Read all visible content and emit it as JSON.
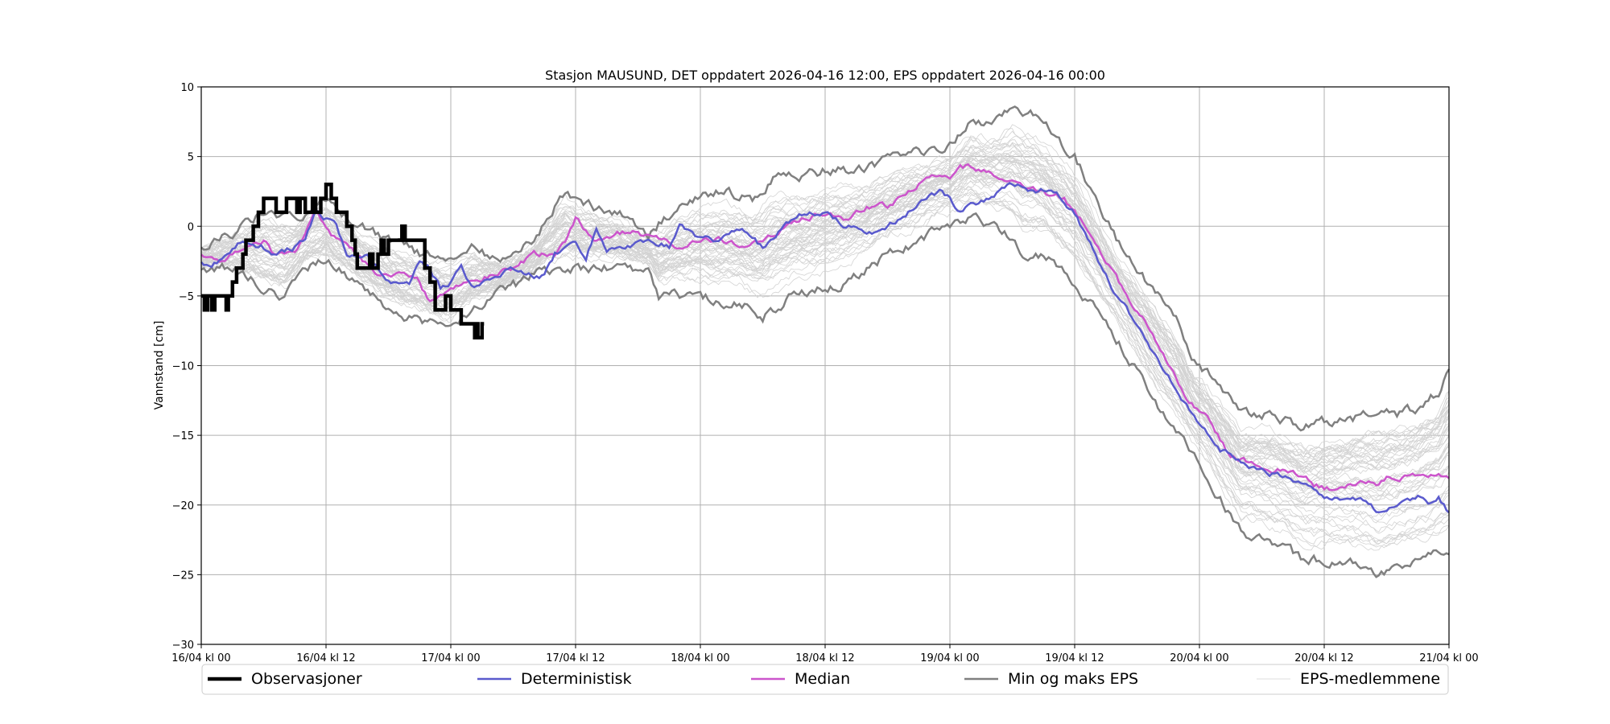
{
  "chart_data": {
    "type": "line",
    "title": "Stasjon MAUSUND, DET oppdatert 2026-04-16 12:00, EPS oppdatert 2026-04-16 00:00",
    "xlabel": "",
    "ylabel": "Vannstand [cm]",
    "x_unit": "hours since 16/04 kl 00",
    "xlim": [
      0,
      120
    ],
    "ylim": [
      -30,
      10
    ],
    "grid": true,
    "legend_placement": "bottom",
    "x_ticks": [
      {
        "value": 0,
        "label": "16/04 kl 00"
      },
      {
        "value": 12,
        "label": "16/04 kl 12"
      },
      {
        "value": 24,
        "label": "17/04 kl 00"
      },
      {
        "value": 36,
        "label": "17/04 kl 12"
      },
      {
        "value": 48,
        "label": "18/04 kl 00"
      },
      {
        "value": 60,
        "label": "18/04 kl 12"
      },
      {
        "value": 72,
        "label": "19/04 kl 00"
      },
      {
        "value": 84,
        "label": "19/04 kl 12"
      },
      {
        "value": 96,
        "label": "20/04 kl 00"
      },
      {
        "value": 108,
        "label": "20/04 kl 12"
      },
      {
        "value": 120,
        "label": "21/04 kl 00"
      }
    ],
    "y_ticks": [
      {
        "value": 10,
        "label": "10"
      },
      {
        "value": 5,
        "label": "5"
      },
      {
        "value": 0,
        "label": "0"
      },
      {
        "value": -5,
        "label": "−5"
      },
      {
        "value": -10,
        "label": "−10"
      },
      {
        "value": -15,
        "label": "−15"
      },
      {
        "value": -20,
        "label": "−20"
      },
      {
        "value": -25,
        "label": "−25"
      },
      {
        "value": -30,
        "label": "−30"
      }
    ],
    "eps_member_count": 50,
    "series": [
      {
        "key": "eps",
        "name": "EPS-medlemmene",
        "color": "#d3d3d3"
      },
      {
        "key": "minmax",
        "name": "Min og maks EPS",
        "color": "#808080",
        "max": [
          [
            0,
            -1.5
          ],
          [
            3,
            -0.5
          ],
          [
            6,
            1
          ],
          [
            9,
            0.5
          ],
          [
            12,
            2
          ],
          [
            15,
            0
          ],
          [
            18,
            -1
          ],
          [
            21,
            -2
          ],
          [
            24,
            -2
          ],
          [
            26,
            -1.5
          ],
          [
            29,
            -2.5
          ],
          [
            32,
            -1
          ],
          [
            35,
            2.5
          ],
          [
            37,
            1.5
          ],
          [
            40,
            1
          ],
          [
            43,
            -0.5
          ],
          [
            46,
            1.5
          ],
          [
            50,
            2.5
          ],
          [
            53,
            2
          ],
          [
            55,
            3.5
          ],
          [
            58,
            3.5
          ],
          [
            60,
            4
          ],
          [
            64,
            4
          ],
          [
            67,
            5
          ],
          [
            70,
            5.5
          ],
          [
            72,
            6
          ],
          [
            74,
            7.5
          ],
          [
            76,
            7.5
          ],
          [
            78,
            8.5
          ],
          [
            80,
            8
          ],
          [
            82,
            6.5
          ],
          [
            84,
            5
          ],
          [
            86,
            2
          ],
          [
            88,
            -1
          ],
          [
            90,
            -3
          ],
          [
            92,
            -5
          ],
          [
            94,
            -7
          ],
          [
            95,
            -9
          ],
          [
            96,
            -10
          ],
          [
            98,
            -11.5
          ],
          [
            100,
            -13.5
          ],
          [
            103,
            -13.5
          ],
          [
            106,
            -14.5
          ],
          [
            108,
            -14
          ],
          [
            110,
            -14
          ],
          [
            112,
            -13.5
          ],
          [
            115,
            -13.5
          ],
          [
            117,
            -13
          ],
          [
            119,
            -12
          ],
          [
            120,
            -10.5
          ]
        ],
        "min": [
          [
            0,
            -3
          ],
          [
            3,
            -3
          ],
          [
            6,
            -4.5
          ],
          [
            8,
            -5
          ],
          [
            10,
            -3
          ],
          [
            12,
            -2.5
          ],
          [
            15,
            -4
          ],
          [
            18,
            -6
          ],
          [
            20,
            -6.5
          ],
          [
            22,
            -7
          ],
          [
            24,
            -7.5
          ],
          [
            26,
            -6
          ],
          [
            28,
            -5
          ],
          [
            31,
            -4
          ],
          [
            33,
            -3
          ],
          [
            35,
            -3
          ],
          [
            37,
            -3
          ],
          [
            40,
            -3
          ],
          [
            43,
            -3
          ],
          [
            44,
            -5
          ],
          [
            48,
            -5
          ],
          [
            50,
            -5.5
          ],
          [
            52,
            -5.5
          ],
          [
            54,
            -6.5
          ],
          [
            57,
            -5
          ],
          [
            60,
            -4.5
          ],
          [
            62,
            -4
          ],
          [
            64,
            -3
          ],
          [
            66,
            -2
          ],
          [
            68,
            -1.5
          ],
          [
            70,
            -0.5
          ],
          [
            72,
            0
          ],
          [
            74,
            0.5
          ],
          [
            76,
            0
          ],
          [
            78,
            -1
          ],
          [
            79,
            -2
          ],
          [
            81,
            -2
          ],
          [
            84,
            -4
          ],
          [
            86,
            -6
          ],
          [
            88,
            -8
          ],
          [
            90,
            -10.5
          ],
          [
            92,
            -13
          ],
          [
            94,
            -15
          ],
          [
            96,
            -17
          ],
          [
            98,
            -19.5
          ],
          [
            100,
            -22
          ],
          [
            102,
            -22.5
          ],
          [
            104,
            -23
          ],
          [
            106,
            -24
          ],
          [
            108,
            -24
          ],
          [
            110,
            -24
          ],
          [
            112,
            -24.5
          ],
          [
            113,
            -25
          ],
          [
            116,
            -24
          ],
          [
            118,
            -23.5
          ],
          [
            120,
            -23
          ]
        ]
      },
      {
        "key": "median",
        "name": "Median",
        "color": "#cc55cc",
        "points": [
          [
            0,
            -2
          ],
          [
            2,
            -2.5
          ],
          [
            4,
            -1.5
          ],
          [
            6,
            -1
          ],
          [
            7,
            -2
          ],
          [
            9,
            -2
          ],
          [
            11,
            1
          ],
          [
            13,
            -1
          ],
          [
            15,
            -2
          ],
          [
            17,
            -3.5
          ],
          [
            19,
            -3.5
          ],
          [
            21,
            -4
          ],
          [
            22,
            -5.5
          ],
          [
            24,
            -4.5
          ],
          [
            26,
            -4
          ],
          [
            28,
            -3.5
          ],
          [
            30,
            -3
          ],
          [
            32,
            -2
          ],
          [
            34,
            -2
          ],
          [
            35,
            -1
          ],
          [
            36,
            0.5
          ],
          [
            38,
            -1
          ],
          [
            40,
            -0.5
          ],
          [
            42,
            -0.5
          ],
          [
            44,
            -1
          ],
          [
            46,
            -1.5
          ],
          [
            48,
            -1
          ],
          [
            50,
            -1
          ],
          [
            52,
            -1.5
          ],
          [
            54,
            -1
          ],
          [
            56,
            0
          ],
          [
            58,
            0.5
          ],
          [
            60,
            1
          ],
          [
            62,
            0.5
          ],
          [
            64,
            1.5
          ],
          [
            66,
            1.5
          ],
          [
            68,
            2.5
          ],
          [
            70,
            3.5
          ],
          [
            72,
            3.5
          ],
          [
            73,
            4.5
          ],
          [
            75,
            4
          ],
          [
            77,
            3.5
          ],
          [
            79,
            3
          ],
          [
            81,
            2.5
          ],
          [
            83,
            2
          ],
          [
            85,
            0
          ],
          [
            87,
            -2.5
          ],
          [
            89,
            -5
          ],
          [
            91,
            -7
          ],
          [
            93,
            -10
          ],
          [
            95,
            -12.5
          ],
          [
            97,
            -14
          ],
          [
            99,
            -16.5
          ],
          [
            101,
            -17
          ],
          [
            103,
            -17.5
          ],
          [
            105,
            -17.5
          ],
          [
            107,
            -18.5
          ],
          [
            109,
            -19
          ],
          [
            111,
            -18.5
          ],
          [
            113,
            -18.5
          ],
          [
            114,
            -18
          ],
          [
            116,
            -18
          ],
          [
            118,
            -18
          ],
          [
            120,
            -18
          ]
        ]
      },
      {
        "key": "det",
        "name": "Deterministisk",
        "color": "#5a5acd",
        "points": [
          [
            0,
            -2.5
          ],
          [
            1,
            -3
          ],
          [
            3,
            -1.5
          ],
          [
            4,
            -1
          ],
          [
            6,
            -1.5
          ],
          [
            7,
            -2
          ],
          [
            9,
            -1.5
          ],
          [
            10,
            -1
          ],
          [
            11,
            1
          ],
          [
            13,
            0
          ],
          [
            14,
            -2
          ],
          [
            16,
            -2
          ],
          [
            17,
            -3
          ],
          [
            18,
            -4
          ],
          [
            20,
            -4
          ],
          [
            21,
            -2.5
          ],
          [
            22,
            -3
          ],
          [
            23,
            -4.5
          ],
          [
            24,
            -4
          ],
          [
            25,
            -3
          ],
          [
            26,
            -4.5
          ],
          [
            28,
            -3.5
          ],
          [
            30,
            -3
          ],
          [
            32,
            -3.5
          ],
          [
            33,
            -3.5
          ],
          [
            34,
            -2
          ],
          [
            36,
            -1
          ],
          [
            37,
            -2.5
          ],
          [
            38,
            0
          ],
          [
            39,
            -1.5
          ],
          [
            41,
            -1.5
          ],
          [
            43,
            -1
          ],
          [
            45,
            -1.5
          ],
          [
            46,
            0
          ],
          [
            48,
            -1
          ],
          [
            50,
            -1
          ],
          [
            52,
            0
          ],
          [
            54,
            -1.5
          ],
          [
            56,
            0
          ],
          [
            58,
            1
          ],
          [
            60,
            1
          ],
          [
            62,
            0
          ],
          [
            64,
            -0.5
          ],
          [
            65,
            -0.5
          ],
          [
            67,
            0.5
          ],
          [
            69,
            1.5
          ],
          [
            71,
            2.5
          ],
          [
            72,
            2
          ],
          [
            73,
            1
          ],
          [
            74,
            1.5
          ],
          [
            76,
            2
          ],
          [
            78,
            3
          ],
          [
            80,
            2.5
          ],
          [
            82,
            2.5
          ],
          [
            84,
            1
          ],
          [
            86,
            -2
          ],
          [
            88,
            -5
          ],
          [
            90,
            -7
          ],
          [
            92,
            -9.5
          ],
          [
            94,
            -12
          ],
          [
            96,
            -14
          ],
          [
            98,
            -16
          ],
          [
            100,
            -17
          ],
          [
            102,
            -17.5
          ],
          [
            104,
            -18
          ],
          [
            106,
            -18.5
          ],
          [
            108,
            -19.5
          ],
          [
            110,
            -19.5
          ],
          [
            112,
            -19.5
          ],
          [
            113,
            -20.5
          ],
          [
            115,
            -20
          ],
          [
            117,
            -19.5
          ],
          [
            118,
            -20
          ],
          [
            119,
            -19.5
          ],
          [
            120,
            -20.5
          ]
        ]
      },
      {
        "key": "obs",
        "name": "Observasjoner",
        "color": "#000000",
        "points": [
          [
            0,
            -5
          ],
          [
            0.3,
            -6
          ],
          [
            0.6,
            -5
          ],
          [
            1.0,
            -6
          ],
          [
            1.3,
            -5
          ],
          [
            2.2,
            -5
          ],
          [
            2.4,
            -6
          ],
          [
            2.6,
            -5
          ],
          [
            3,
            -4
          ],
          [
            3.4,
            -3
          ],
          [
            4,
            -2
          ],
          [
            4.3,
            -1
          ],
          [
            4.7,
            -1
          ],
          [
            5,
            0
          ],
          [
            5.5,
            1
          ],
          [
            6,
            2
          ],
          [
            7,
            2
          ],
          [
            7.2,
            1
          ],
          [
            8,
            1
          ],
          [
            8.2,
            2
          ],
          [
            9,
            2
          ],
          [
            9.2,
            1
          ],
          [
            9.5,
            2
          ],
          [
            10,
            1
          ],
          [
            10.5,
            1
          ],
          [
            10.7,
            2
          ],
          [
            11,
            1
          ],
          [
            11.5,
            2
          ],
          [
            12,
            3
          ],
          [
            12.5,
            2
          ],
          [
            13,
            1
          ],
          [
            13.5,
            1
          ],
          [
            14,
            0
          ],
          [
            14.5,
            -1
          ],
          [
            14.8,
            -2
          ],
          [
            15,
            -3
          ],
          [
            16,
            -3
          ],
          [
            16.2,
            -2
          ],
          [
            16.5,
            -3
          ],
          [
            17,
            -2
          ],
          [
            17.3,
            -1
          ],
          [
            17.6,
            -2
          ],
          [
            18,
            -1
          ],
          [
            19,
            -1
          ],
          [
            19.3,
            0
          ],
          [
            19.6,
            -1
          ],
          [
            21,
            -1
          ],
          [
            21.5,
            -3
          ],
          [
            22,
            -4
          ],
          [
            22.5,
            -6
          ],
          [
            23,
            -6
          ],
          [
            23.5,
            -5
          ],
          [
            24,
            -6
          ],
          [
            24.5,
            -6
          ],
          [
            25,
            -7
          ],
          [
            26,
            -7
          ],
          [
            26.3,
            -8
          ],
          [
            26.5,
            -7
          ],
          [
            26.6,
            -8
          ],
          [
            27,
            -7
          ],
          [
            27.2,
            -7
          ]
        ]
      }
    ],
    "legend": [
      "Observasjoner",
      "Deterministisk",
      "Median",
      "Min og maks EPS",
      "EPS-medlemmene"
    ]
  }
}
